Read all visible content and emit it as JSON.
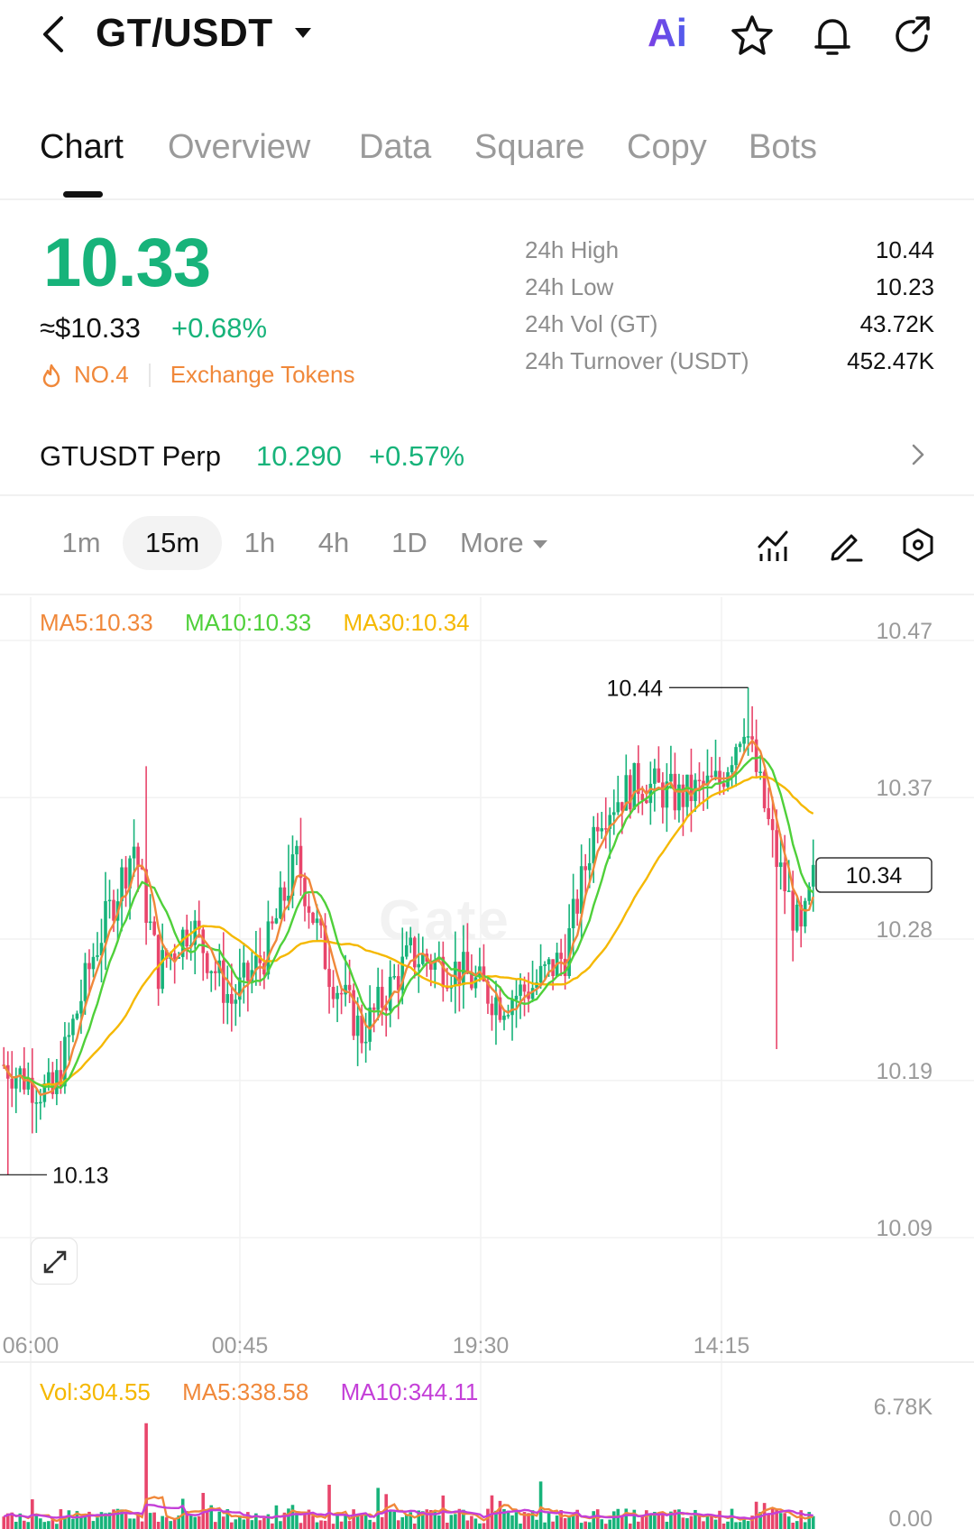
{
  "header": {
    "pair": "GT/USDT",
    "ai_label": "Ai"
  },
  "tabs": [
    "Chart",
    "Overview",
    "Data",
    "Square",
    "Copy",
    "Bots"
  ],
  "price": {
    "last": "10.33",
    "usd": "≈$10.33",
    "change": "+0.68%",
    "rank": "NO.4",
    "category": "Exchange Tokens"
  },
  "stats": [
    {
      "label": "24h  High",
      "value": "10.44"
    },
    {
      "label": "24h  Low",
      "value": "10.23"
    },
    {
      "label": "24h  Vol (GT)",
      "value": "43.72K"
    },
    {
      "label": "24h  Turnover (USDT)",
      "value": "452.47K"
    }
  ],
  "perp": {
    "name": "GTUSDT Perp",
    "price": "10.290",
    "change": "+0.57%"
  },
  "intervals": [
    "1m",
    "15m",
    "1h",
    "4h",
    "1D",
    "More"
  ],
  "ma": {
    "ma5": "MA5:10.33",
    "ma10": "MA10:10.33",
    "ma30": "MA30:10.34"
  },
  "volume": {
    "vol": "Vol:304.55",
    "ma5": "MA5:338.58",
    "ma10": "MA10:344.11"
  },
  "watermark": "Gate",
  "colors": {
    "up": "#17b37a",
    "down": "#e8456b",
    "ma5": "#f0883a",
    "ma10": "#4fd03a",
    "ma30": "#f5b800",
    "vol_ma10": "#c43fd8"
  },
  "chart_data": {
    "type": "candlestick",
    "interval": "15m",
    "price_axis_ticks": [
      "10.47",
      "10.37",
      "10.28",
      "10.19",
      "10.09"
    ],
    "time_axis_ticks": [
      "06:00",
      "00:45",
      "19:30",
      "14:15"
    ],
    "ylim": [
      10.09,
      10.47
    ],
    "high_marker": "10.44",
    "low_marker": "10.13",
    "current_price_label": "10.34",
    "volume_axis_ticks": [
      "6.78K",
      "0.00"
    ]
  }
}
